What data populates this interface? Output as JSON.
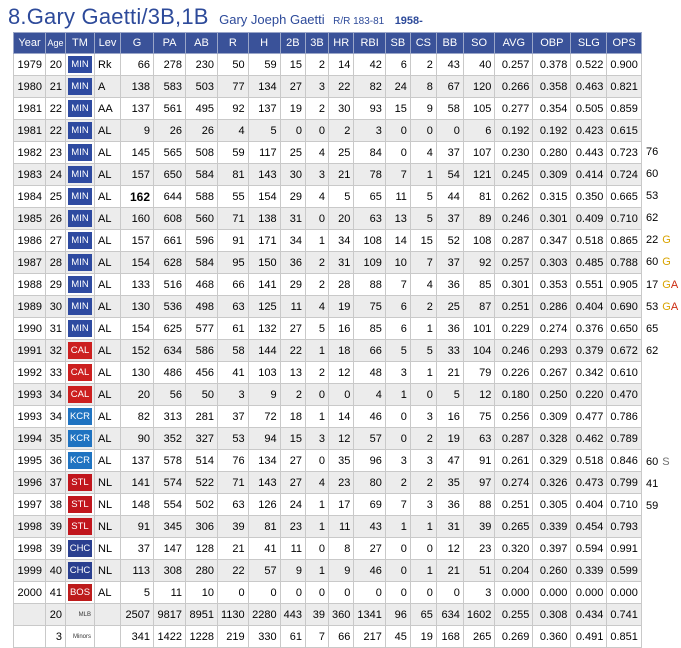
{
  "header": {
    "name": "8.Gary Gaetti/3B,1B",
    "full_name": "Gary Joeph Gaetti",
    "bats_throws": "R/R 183-81",
    "born": "1958-"
  },
  "columns": [
    "Year",
    "Age",
    "TM",
    "Lev",
    "G",
    "PA",
    "AB",
    "R",
    "H",
    "2B",
    "3B",
    "HR",
    "RBI",
    "SB",
    "CS",
    "BB",
    "SO",
    "AVG",
    "OBP",
    "SLG",
    "OPS"
  ],
  "team_colors": {
    "MIN": "#2e4aa0",
    "CAL": "#cc1f1f",
    "KCR": "#1f73c1",
    "STL": "#c1161d",
    "CHC": "#2a3f8f",
    "BOS": "#bd1b1b"
  },
  "rows": [
    {
      "year": "1979",
      "age": "20",
      "tm": "MIN",
      "lev": "Rk",
      "g": "66",
      "pa": "278",
      "ab": "230",
      "r": "50",
      "h": "59",
      "d": "15",
      "t": "2",
      "hr": "14",
      "rbi": "42",
      "sb": "6",
      "cs": "2",
      "bb": "43",
      "so": "40",
      "avg": "0.257",
      "obp": "0.378",
      "slg": "0.522",
      "ops": "0.900",
      "ext": ""
    },
    {
      "year": "1980",
      "age": "21",
      "tm": "MIN",
      "lev": "A",
      "g": "138",
      "pa": "583",
      "ab": "503",
      "r": "77",
      "h": "134",
      "d": "27",
      "t": "3",
      "hr": "22",
      "rbi": "82",
      "sb": "24",
      "cs": "8",
      "bb": "67",
      "so": "120",
      "avg": "0.266",
      "obp": "0.358",
      "slg": "0.463",
      "ops": "0.821",
      "ext": ""
    },
    {
      "year": "1981",
      "age": "22",
      "tm": "MIN",
      "lev": "AA",
      "g": "137",
      "pa": "561",
      "ab": "495",
      "r": "92",
      "h": "137",
      "d": "19",
      "t": "2",
      "hr": "30",
      "rbi": "93",
      "sb": "15",
      "cs": "9",
      "bb": "58",
      "so": "105",
      "avg": "0.277",
      "obp": "0.354",
      "slg": "0.505",
      "ops": "0.859",
      "ext": ""
    },
    {
      "year": "1981",
      "age": "22",
      "tm": "MIN",
      "lev": "AL",
      "g": "9",
      "pa": "26",
      "ab": "26",
      "r": "4",
      "h": "5",
      "d": "0",
      "t": "0",
      "hr": "2",
      "rbi": "3",
      "sb": "0",
      "cs": "0",
      "bb": "0",
      "so": "6",
      "avg": "0.192",
      "obp": "0.192",
      "slg": "0.423",
      "ops": "0.615",
      "ext": ""
    },
    {
      "year": "1982",
      "age": "23",
      "tm": "MIN",
      "lev": "AL",
      "g": "145",
      "pa": "565",
      "ab": "508",
      "r": "59",
      "h": "117",
      "d": "25",
      "t": "4",
      "hr": "25",
      "rbi": "84",
      "sb": "0",
      "cs": "4",
      "bb": "37",
      "so": "107",
      "avg": "0.230",
      "obp": "0.280",
      "slg": "0.443",
      "ops": "0.723",
      "ext": "76"
    },
    {
      "year": "1983",
      "age": "24",
      "tm": "MIN",
      "lev": "AL",
      "g": "157",
      "pa": "650",
      "ab": "584",
      "r": "81",
      "h": "143",
      "d": "30",
      "t": "3",
      "hr": "21",
      "rbi": "78",
      "sb": "7",
      "cs": "1",
      "bb": "54",
      "so": "121",
      "avg": "0.245",
      "obp": "0.309",
      "slg": "0.414",
      "ops": "0.724",
      "ext": "60"
    },
    {
      "year": "1984",
      "age": "25",
      "tm": "MIN",
      "lev": "AL",
      "g": "162",
      "pa": "644",
      "ab": "588",
      "r": "55",
      "h": "154",
      "d": "29",
      "t": "4",
      "hr": "5",
      "rbi": "65",
      "sb": "11",
      "cs": "5",
      "bb": "44",
      "so": "81",
      "avg": "0.262",
      "obp": "0.315",
      "slg": "0.350",
      "ops": "0.665",
      "ext": "53"
    },
    {
      "year": "1985",
      "age": "26",
      "tm": "MIN",
      "lev": "AL",
      "g": "160",
      "pa": "608",
      "ab": "560",
      "r": "71",
      "h": "138",
      "d": "31",
      "t": "0",
      "hr": "20",
      "rbi": "63",
      "sb": "13",
      "cs": "5",
      "bb": "37",
      "so": "89",
      "avg": "0.246",
      "obp": "0.301",
      "slg": "0.409",
      "ops": "0.710",
      "ext": "62"
    },
    {
      "year": "1986",
      "age": "27",
      "tm": "MIN",
      "lev": "AL",
      "g": "157",
      "pa": "661",
      "ab": "596",
      "r": "91",
      "h": "171",
      "d": "34",
      "t": "1",
      "hr": "34",
      "rbi": "108",
      "sb": "14",
      "cs": "15",
      "bb": "52",
      "so": "108",
      "avg": "0.287",
      "obp": "0.347",
      "slg": "0.518",
      "ops": "0.865",
      "ext": "22",
      "ext2": "G"
    },
    {
      "year": "1987",
      "age": "28",
      "tm": "MIN",
      "lev": "AL",
      "g": "154",
      "pa": "628",
      "ab": "584",
      "r": "95",
      "h": "150",
      "d": "36",
      "t": "2",
      "hr": "31",
      "rbi": "109",
      "sb": "10",
      "cs": "7",
      "bb": "37",
      "so": "92",
      "avg": "0.257",
      "obp": "0.303",
      "slg": "0.485",
      "ops": "0.788",
      "ext": "60",
      "ext2": "G"
    },
    {
      "year": "1988",
      "age": "29",
      "tm": "MIN",
      "lev": "AL",
      "g": "133",
      "pa": "516",
      "ab": "468",
      "r": "66",
      "h": "141",
      "d": "29",
      "t": "2",
      "hr": "28",
      "rbi": "88",
      "sb": "7",
      "cs": "4",
      "bb": "36",
      "so": "85",
      "avg": "0.301",
      "obp": "0.353",
      "slg": "0.551",
      "ops": "0.905",
      "ext": "17",
      "ext2": "GA"
    },
    {
      "year": "1989",
      "age": "30",
      "tm": "MIN",
      "lev": "AL",
      "g": "130",
      "pa": "536",
      "ab": "498",
      "r": "63",
      "h": "125",
      "d": "11",
      "t": "4",
      "hr": "19",
      "rbi": "75",
      "sb": "6",
      "cs": "2",
      "bb": "25",
      "so": "87",
      "avg": "0.251",
      "obp": "0.286",
      "slg": "0.404",
      "ops": "0.690",
      "ext": "53",
      "ext2": "GA"
    },
    {
      "year": "1990",
      "age": "31",
      "tm": "MIN",
      "lev": "AL",
      "g": "154",
      "pa": "625",
      "ab": "577",
      "r": "61",
      "h": "132",
      "d": "27",
      "t": "5",
      "hr": "16",
      "rbi": "85",
      "sb": "6",
      "cs": "1",
      "bb": "36",
      "so": "101",
      "avg": "0.229",
      "obp": "0.274",
      "slg": "0.376",
      "ops": "0.650",
      "ext": "65"
    },
    {
      "year": "1991",
      "age": "32",
      "tm": "CAL",
      "lev": "AL",
      "g": "152",
      "pa": "634",
      "ab": "586",
      "r": "58",
      "h": "144",
      "d": "22",
      "t": "1",
      "hr": "18",
      "rbi": "66",
      "sb": "5",
      "cs": "5",
      "bb": "33",
      "so": "104",
      "avg": "0.246",
      "obp": "0.293",
      "slg": "0.379",
      "ops": "0.672",
      "ext": "62"
    },
    {
      "year": "1992",
      "age": "33",
      "tm": "CAL",
      "lev": "AL",
      "g": "130",
      "pa": "486",
      "ab": "456",
      "r": "41",
      "h": "103",
      "d": "13",
      "t": "2",
      "hr": "12",
      "rbi": "48",
      "sb": "3",
      "cs": "1",
      "bb": "21",
      "so": "79",
      "avg": "0.226",
      "obp": "0.267",
      "slg": "0.342",
      "ops": "0.610",
      "ext": ""
    },
    {
      "year": "1993",
      "age": "34",
      "tm": "CAL",
      "lev": "AL",
      "g": "20",
      "pa": "56",
      "ab": "50",
      "r": "3",
      "h": "9",
      "d": "2",
      "t": "0",
      "hr": "0",
      "rbi": "4",
      "sb": "1",
      "cs": "0",
      "bb": "5",
      "so": "12",
      "avg": "0.180",
      "obp": "0.250",
      "slg": "0.220",
      "ops": "0.470",
      "ext": ""
    },
    {
      "year": "1993",
      "age": "34",
      "tm": "KCR",
      "lev": "AL",
      "g": "82",
      "pa": "313",
      "ab": "281",
      "r": "37",
      "h": "72",
      "d": "18",
      "t": "1",
      "hr": "14",
      "rbi": "46",
      "sb": "0",
      "cs": "3",
      "bb": "16",
      "so": "75",
      "avg": "0.256",
      "obp": "0.309",
      "slg": "0.477",
      "ops": "0.786",
      "ext": ""
    },
    {
      "year": "1994",
      "age": "35",
      "tm": "KCR",
      "lev": "AL",
      "g": "90",
      "pa": "352",
      "ab": "327",
      "r": "53",
      "h": "94",
      "d": "15",
      "t": "3",
      "hr": "12",
      "rbi": "57",
      "sb": "0",
      "cs": "2",
      "bb": "19",
      "so": "63",
      "avg": "0.287",
      "obp": "0.328",
      "slg": "0.462",
      "ops": "0.789",
      "ext": ""
    },
    {
      "year": "1995",
      "age": "36",
      "tm": "KCR",
      "lev": "AL",
      "g": "137",
      "pa": "578",
      "ab": "514",
      "r": "76",
      "h": "134",
      "d": "27",
      "t": "0",
      "hr": "35",
      "rbi": "96",
      "sb": "3",
      "cs": "3",
      "bb": "47",
      "so": "91",
      "avg": "0.261",
      "obp": "0.329",
      "slg": "0.518",
      "ops": "0.846",
      "ext": "60",
      "ext2": "S"
    },
    {
      "year": "1996",
      "age": "37",
      "tm": "STL",
      "lev": "NL",
      "g": "141",
      "pa": "574",
      "ab": "522",
      "r": "71",
      "h": "143",
      "d": "27",
      "t": "4",
      "hr": "23",
      "rbi": "80",
      "sb": "2",
      "cs": "2",
      "bb": "35",
      "so": "97",
      "avg": "0.274",
      "obp": "0.326",
      "slg": "0.473",
      "ops": "0.799",
      "ext": "41"
    },
    {
      "year": "1997",
      "age": "38",
      "tm": "STL",
      "lev": "NL",
      "g": "148",
      "pa": "554",
      "ab": "502",
      "r": "63",
      "h": "126",
      "d": "24",
      "t": "1",
      "hr": "17",
      "rbi": "69",
      "sb": "7",
      "cs": "3",
      "bb": "36",
      "so": "88",
      "avg": "0.251",
      "obp": "0.305",
      "slg": "0.404",
      "ops": "0.710",
      "ext": "59"
    },
    {
      "year": "1998",
      "age": "39",
      "tm": "STL",
      "lev": "NL",
      "g": "91",
      "pa": "345",
      "ab": "306",
      "r": "39",
      "h": "81",
      "d": "23",
      "t": "1",
      "hr": "11",
      "rbi": "43",
      "sb": "1",
      "cs": "1",
      "bb": "31",
      "so": "39",
      "avg": "0.265",
      "obp": "0.339",
      "slg": "0.454",
      "ops": "0.793",
      "ext": ""
    },
    {
      "year": "1998",
      "age": "39",
      "tm": "CHC",
      "lev": "NL",
      "g": "37",
      "pa": "147",
      "ab": "128",
      "r": "21",
      "h": "41",
      "d": "11",
      "t": "0",
      "hr": "8",
      "rbi": "27",
      "sb": "0",
      "cs": "0",
      "bb": "12",
      "so": "23",
      "avg": "0.320",
      "obp": "0.397",
      "slg": "0.594",
      "ops": "0.991",
      "ext": ""
    },
    {
      "year": "1999",
      "age": "40",
      "tm": "CHC",
      "lev": "NL",
      "g": "113",
      "pa": "308",
      "ab": "280",
      "r": "22",
      "h": "57",
      "d": "9",
      "t": "1",
      "hr": "9",
      "rbi": "46",
      "sb": "0",
      "cs": "1",
      "bb": "21",
      "so": "51",
      "avg": "0.204",
      "obp": "0.260",
      "slg": "0.339",
      "ops": "0.599",
      "ext": ""
    },
    {
      "year": "2000",
      "age": "41",
      "tm": "BOS",
      "lev": "AL",
      "g": "5",
      "pa": "11",
      "ab": "10",
      "r": "0",
      "h": "0",
      "d": "0",
      "t": "0",
      "hr": "0",
      "rbi": "0",
      "sb": "0",
      "cs": "0",
      "bb": "0",
      "so": "3",
      "avg": "0.000",
      "obp": "0.000",
      "slg": "0.000",
      "ops": "0.000",
      "ext": ""
    }
  ],
  "totals": [
    {
      "seasons": "20",
      "label": "MLB",
      "g": "2507",
      "pa": "9817",
      "ab": "8951",
      "r": "1130",
      "h": "2280",
      "d": "443",
      "t": "39",
      "hr": "360",
      "rbi": "1341",
      "sb": "96",
      "cs": "65",
      "bb": "634",
      "so": "1602",
      "avg": "0.255",
      "obp": "0.308",
      "slg": "0.434",
      "ops": "0.741"
    },
    {
      "seasons": "3",
      "label": "Minors",
      "g": "341",
      "pa": "1422",
      "ab": "1228",
      "r": "219",
      "h": "330",
      "d": "61",
      "t": "7",
      "hr": "66",
      "rbi": "217",
      "sb": "45",
      "cs": "19",
      "bb": "168",
      "so": "265",
      "avg": "0.269",
      "obp": "0.360",
      "slg": "0.491",
      "ops": "0.851"
    }
  ]
}
